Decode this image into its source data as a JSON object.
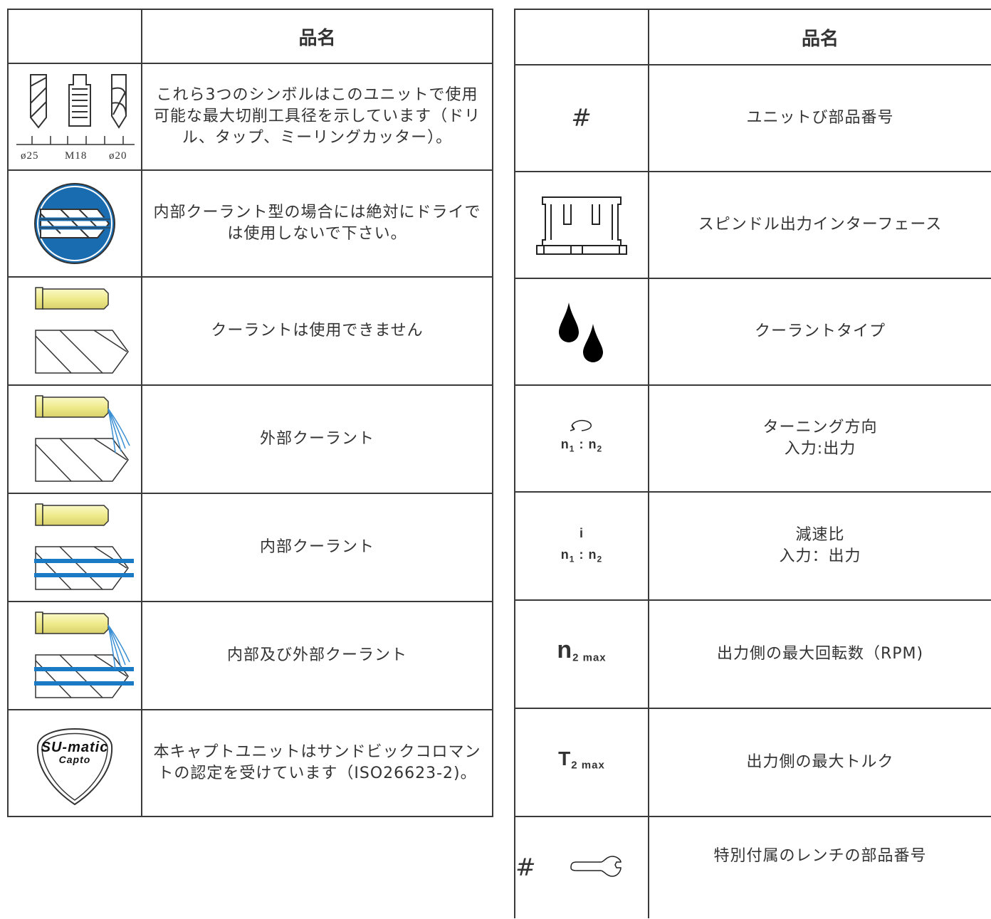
{
  "left_table": {
    "header": "品名",
    "rows": [
      {
        "symbol": [
          "ø25",
          "M18",
          "ø20"
        ],
        "description": "これら3つのシンボルはこのユニットで使用可能な最大切削工具径を示しています（ドリル、タップ、ミーリングカッター）。"
      },
      {
        "description": "内部クーラント型の場合には絶対にドライでは使用しないで下さい。"
      },
      {
        "description": "クーラントは使用できません"
      },
      {
        "description": "外部クーラント"
      },
      {
        "description": "内部クーラント"
      },
      {
        "description": "内部及び外部クーラント"
      },
      {
        "symbol": [
          "SU-matic",
          "Capto"
        ],
        "description": "本キャプトユニットはサンドビックコロマントの認定を受けています（ISO26623-2)。"
      }
    ]
  },
  "right_table": {
    "header": "品名",
    "rows": [
      {
        "symbol": "#",
        "description": "ユニットび部品番号"
      },
      {
        "description": "スピンドル出力インターフェース"
      },
      {
        "description": "クーラントタイプ"
      },
      {
        "symbol": [
          "n",
          "1",
          ":",
          "n",
          "2"
        ],
        "description": [
          "ターニング方向",
          "入力:出力"
        ]
      },
      {
        "symbol": [
          "i",
          "n",
          "1",
          ":",
          "n",
          "2"
        ],
        "description": [
          "減速比",
          "入力：出力"
        ]
      },
      {
        "symbol": [
          "n",
          "2 max"
        ],
        "description": "出力側の最大回転数（RPM)"
      },
      {
        "symbol": [
          "T",
          "2 max"
        ],
        "description": "出力側の最大トルク"
      },
      {
        "symbol": "#",
        "description": "特別付属のレンチの部品番号"
      }
    ]
  }
}
